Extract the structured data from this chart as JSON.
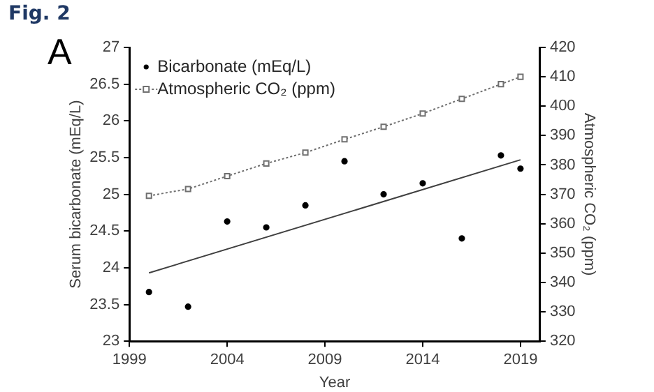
{
  "chart_data": {
    "type": "scatter",
    "title": "Fig. 2",
    "annotations": [
      "A"
    ],
    "xlabel": "Year",
    "ylabel": "Serum bicarbonate (mEq/L)",
    "y2label": "Atmospheric CO₂ (ppm)",
    "xlim": [
      1999,
      2020
    ],
    "xticks": [
      1999,
      2004,
      2009,
      2014,
      2019
    ],
    "ylim": [
      23,
      27
    ],
    "yticks": [
      23,
      23.5,
      24,
      24.5,
      25,
      25.5,
      26,
      26.5,
      27
    ],
    "y2lim": [
      320,
      420
    ],
    "y2ticks": [
      320,
      330,
      340,
      350,
      360,
      370,
      380,
      390,
      400,
      410,
      420
    ],
    "grid": false,
    "legend": "top left",
    "series": [
      {
        "name": "Bicarbonate (mEq/L)",
        "type": "scatter",
        "marker": "circle",
        "color": "#000000",
        "x": [
          2000,
          2002,
          2004,
          2006,
          2008,
          2010,
          2012,
          2014,
          2016,
          2018,
          2019
        ],
        "values": [
          23.67,
          23.47,
          24.63,
          24.55,
          24.85,
          25.45,
          25.0,
          25.15,
          24.4,
          25.53,
          25.35
        ]
      },
      {
        "name": "Atmospheric CO₂ (ppm)",
        "type": "line",
        "axis": "y2",
        "marker": "square",
        "line_style": "dotted",
        "color": "#707070",
        "x": [
          2000,
          2002,
          2004,
          2006,
          2008,
          2010,
          2012,
          2014,
          2016,
          2018,
          2019
        ],
        "values": [
          369.5,
          371.8,
          376.2,
          380.5,
          384.2,
          388.7,
          393,
          397.5,
          402.5,
          407.5,
          410
        ]
      },
      {
        "type": "line",
        "marker": "none",
        "line_style": "solid",
        "color": "#404040",
        "x": [
          2000,
          2019
        ],
        "values": [
          23.93,
          25.47
        ]
      }
    ]
  }
}
